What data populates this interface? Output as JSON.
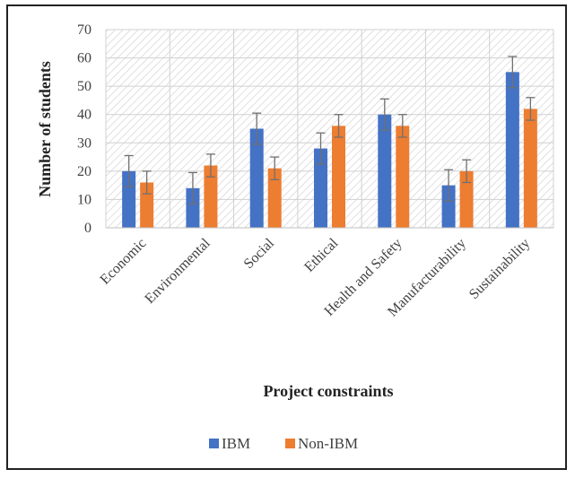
{
  "chart_data": {
    "type": "bar",
    "title": "",
    "xlabel": "Project constraints",
    "ylabel": "Number  of students",
    "ylim": [
      0,
      70
    ],
    "yticks": [
      0,
      10,
      20,
      30,
      40,
      50,
      60,
      70
    ],
    "categories": [
      "Economic",
      "Environmental",
      "Social",
      "Ethical",
      "Health and Safety",
      "Manufacturability",
      "Sustainability"
    ],
    "series": [
      {
        "name": "IBM",
        "color": "#4472C4",
        "values": [
          20,
          14,
          35,
          28,
          40,
          15,
          55
        ],
        "errors": [
          5.5,
          5.5,
          5.5,
          5.5,
          5.5,
          5.5,
          5.5
        ]
      },
      {
        "name": "Non-IBM",
        "color": "#ED7D31",
        "values": [
          16,
          22,
          21,
          36,
          36,
          20,
          42
        ],
        "errors": [
          4,
          4,
          4,
          4,
          4,
          4,
          4
        ]
      }
    ],
    "grid": true,
    "error_bars": true,
    "legend_position": "bottom"
  }
}
